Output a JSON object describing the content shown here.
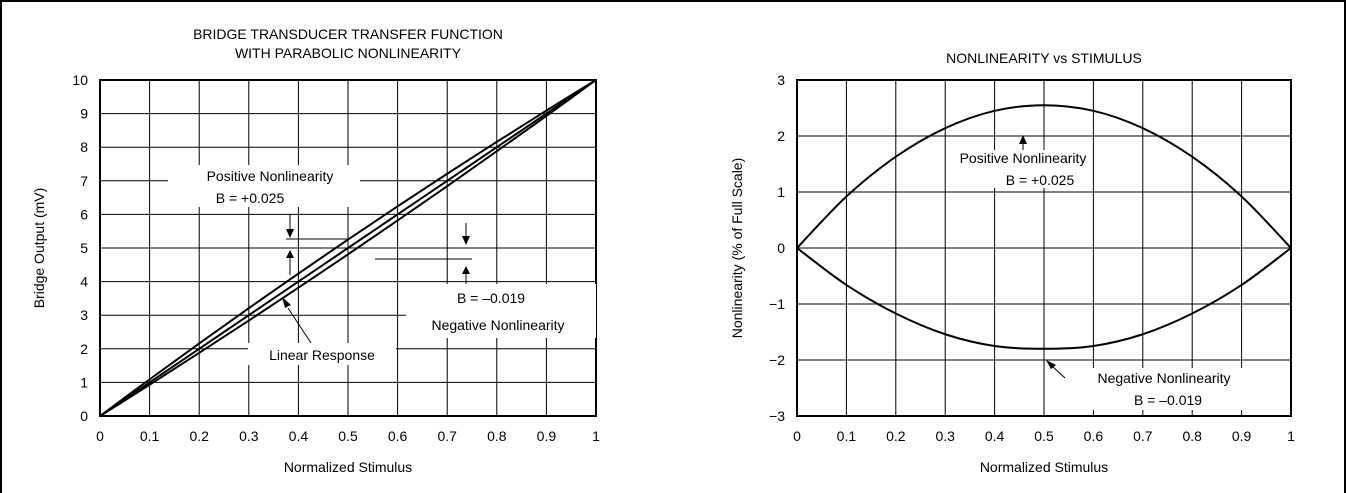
{
  "chart_data": [
    {
      "type": "line",
      "title": [
        "BRIDGE TRANSDUCER TRANSFER FUNCTION",
        "WITH PARABOLIC NONLINEARITY"
      ],
      "xlabel": "Normalized Stimulus",
      "ylabel": "Bridge Output (mV)",
      "xlim": [
        0,
        1
      ],
      "ylim": [
        0,
        10
      ],
      "xticks": [
        "0",
        "0.1",
        "0.2",
        "0.3",
        "0.4",
        "0.5",
        "0.6",
        "0.7",
        "0.8",
        "0.9",
        "1"
      ],
      "yticks": [
        "0",
        "1",
        "2",
        "3",
        "4",
        "5",
        "6",
        "7",
        "8",
        "9",
        "10"
      ],
      "grid": true,
      "series": [
        {
          "x": [
            0,
            0.1,
            0.2,
            0.3,
            0.4,
            0.5,
            0.6,
            0.7,
            0.8,
            0.9,
            1
          ],
          "y": [
            0,
            1.09,
            2.16,
            3.21,
            4.24,
            5.25,
            6.24,
            7.21,
            8.16,
            9.09,
            10
          ]
        },
        {
          "x": [
            0,
            0.1,
            0.2,
            0.3,
            0.4,
            0.5,
            0.6,
            0.7,
            0.8,
            0.9,
            1
          ],
          "y": [
            0,
            1,
            2,
            3,
            4,
            5,
            6,
            7,
            8,
            9,
            10
          ]
        },
        {
          "x": [
            0,
            0.1,
            0.2,
            0.3,
            0.4,
            0.5,
            0.6,
            0.7,
            0.8,
            0.9,
            1
          ],
          "y": [
            0,
            0.93,
            1.88,
            2.84,
            3.82,
            4.81,
            5.82,
            6.84,
            7.88,
            8.93,
            10
          ]
        }
      ],
      "annotations": {
        "positive": [
          "Positive Nonlinearity",
          "B = +0.025"
        ],
        "negative": [
          "B = –0.019",
          "Negative Nonlinearity"
        ],
        "linear": "Linear Response"
      }
    },
    {
      "type": "line",
      "title": "NONLINEARITY vs STIMULUS",
      "xlabel": "Normalized Stimulus",
      "ylabel": "Nonlinearity (% of Full Scale)",
      "xlim": [
        0,
        1
      ],
      "ylim": [
        -3,
        3
      ],
      "xticks": [
        "0",
        "0.1",
        "0.2",
        "0.3",
        "0.4",
        "0.5",
        "0.6",
        "0.7",
        "0.8",
        "0.9",
        "1"
      ],
      "yticks": [
        "3",
        "2",
        "1",
        "0",
        "−1",
        "−2",
        "−3"
      ],
      "grid": true,
      "series": [
        {
          "x": [
            0,
            0.1,
            0.2,
            0.3,
            0.4,
            0.5,
            0.6,
            0.7,
            0.8,
            0.9,
            1
          ],
          "y": [
            0,
            0.92,
            1.63,
            2.14,
            2.45,
            2.55,
            2.45,
            2.14,
            1.63,
            0.92,
            0
          ]
        },
        {
          "x": [
            0,
            0.1,
            0.2,
            0.3,
            0.4,
            0.5,
            0.6,
            0.7,
            0.8,
            0.9,
            1
          ],
          "y": [
            0,
            -0.66,
            -1.17,
            -1.54,
            -1.75,
            -1.8,
            -1.75,
            -1.54,
            -1.17,
            -0.66,
            0
          ]
        }
      ],
      "annotations": {
        "positive": [
          "Positive Nonlinearity",
          "B = +0.025"
        ],
        "negative": [
          "Negative Nonlinearity",
          "B = –0.019"
        ]
      }
    }
  ]
}
